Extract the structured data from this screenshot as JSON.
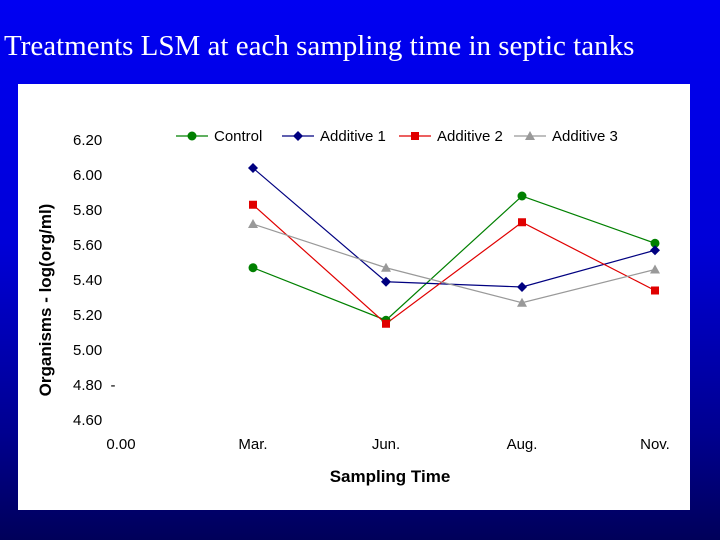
{
  "slide": {
    "title": "Treatments LSM at each sampling time in septic tanks",
    "background_colors": [
      "#0000f2",
      "#00005a"
    ]
  },
  "chart_data": {
    "type": "line",
    "title": "",
    "xlabel": "Sampling Time",
    "ylabel": "Organisms - log(org/ml)",
    "categories": [
      "Mar.",
      "Jun.",
      "Aug.",
      "Nov."
    ],
    "x_axis_origin_label": "0.00",
    "y_tick_labels": [
      "6.20",
      "6.00",
      "5.80",
      "5.60",
      "5.40",
      "5.20",
      "5.00",
      "4.80  -",
      "4.60"
    ],
    "ylim": [
      4.6,
      6.2
    ],
    "legend_position": "top",
    "grid": false,
    "series": [
      {
        "name": "Control",
        "values": [
          5.47,
          5.17,
          5.88,
          5.61
        ],
        "color": "#008000",
        "marker": "circle"
      },
      {
        "name": "Additive 1",
        "values": [
          6.04,
          5.39,
          5.36,
          5.57
        ],
        "color": "#000080",
        "marker": "diamond"
      },
      {
        "name": "Additive 2",
        "values": [
          5.83,
          5.15,
          5.73,
          5.34
        ],
        "color": "#e00000",
        "marker": "square"
      },
      {
        "name": "Additive 3",
        "values": [
          5.72,
          5.47,
          5.27,
          5.46
        ],
        "color": "#999999",
        "marker": "triangle"
      }
    ]
  }
}
